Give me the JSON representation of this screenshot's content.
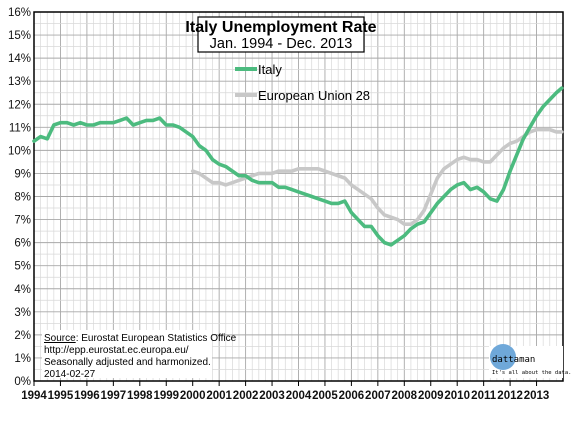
{
  "chart_data": {
    "type": "line",
    "title": "Italy Unemployment Rate",
    "subtitle": "Jan. 1994 - Dec. 2013",
    "xlabel": "",
    "ylabel": "",
    "xlim": [
      1994.0,
      2014.0
    ],
    "ylim": [
      0,
      16
    ],
    "x_ticks": [
      "1994",
      "1995",
      "1996",
      "1997",
      "1998",
      "1999",
      "2000",
      "2001",
      "2002",
      "2003",
      "2004",
      "2005",
      "2006",
      "2007",
      "2008",
      "2009",
      "2010",
      "2011",
      "2012",
      "2013"
    ],
    "y_ticks": [
      "0%",
      "1%",
      "2%",
      "3%",
      "4%",
      "5%",
      "6%",
      "7%",
      "8%",
      "9%",
      "10%",
      "11%",
      "12%",
      "13%",
      "14%",
      "15%",
      "16%"
    ],
    "grid": true,
    "legend_position": "top-center",
    "series": [
      {
        "name": "Italy",
        "color": "#4cbb7f",
        "points": [
          [
            1994.0,
            10.4
          ],
          [
            1994.25,
            10.6
          ],
          [
            1994.5,
            10.5
          ],
          [
            1994.75,
            11.1
          ],
          [
            1995.0,
            11.2
          ],
          [
            1995.25,
            11.2
          ],
          [
            1995.5,
            11.1
          ],
          [
            1995.75,
            11.2
          ],
          [
            1996.0,
            11.1
          ],
          [
            1996.25,
            11.1
          ],
          [
            1996.5,
            11.2
          ],
          [
            1996.75,
            11.2
          ],
          [
            1997.0,
            11.2
          ],
          [
            1997.25,
            11.3
          ],
          [
            1997.5,
            11.4
          ],
          [
            1997.75,
            11.1
          ],
          [
            1998.0,
            11.2
          ],
          [
            1998.25,
            11.3
          ],
          [
            1998.5,
            11.3
          ],
          [
            1998.75,
            11.4
          ],
          [
            1999.0,
            11.1
          ],
          [
            1999.25,
            11.1
          ],
          [
            1999.5,
            11.0
          ],
          [
            1999.75,
            10.8
          ],
          [
            2000.0,
            10.6
          ],
          [
            2000.25,
            10.2
          ],
          [
            2000.5,
            10.0
          ],
          [
            2000.75,
            9.6
          ],
          [
            2001.0,
            9.4
          ],
          [
            2001.25,
            9.3
          ],
          [
            2001.5,
            9.1
          ],
          [
            2001.75,
            8.9
          ],
          [
            2002.0,
            8.9
          ],
          [
            2002.25,
            8.7
          ],
          [
            2002.5,
            8.6
          ],
          [
            2002.75,
            8.6
          ],
          [
            2003.0,
            8.6
          ],
          [
            2003.25,
            8.4
          ],
          [
            2003.5,
            8.4
          ],
          [
            2003.75,
            8.3
          ],
          [
            2004.0,
            8.2
          ],
          [
            2004.25,
            8.1
          ],
          [
            2004.5,
            8.0
          ],
          [
            2004.75,
            7.9
          ],
          [
            2005.0,
            7.8
          ],
          [
            2005.25,
            7.7
          ],
          [
            2005.5,
            7.7
          ],
          [
            2005.75,
            7.8
          ],
          [
            2006.0,
            7.3
          ],
          [
            2006.25,
            7.0
          ],
          [
            2006.5,
            6.7
          ],
          [
            2006.75,
            6.7
          ],
          [
            2007.0,
            6.3
          ],
          [
            2007.25,
            6.0
          ],
          [
            2007.5,
            5.9
          ],
          [
            2007.75,
            6.1
          ],
          [
            2008.0,
            6.3
          ],
          [
            2008.25,
            6.6
          ],
          [
            2008.5,
            6.8
          ],
          [
            2008.75,
            6.9
          ],
          [
            2009.0,
            7.3
          ],
          [
            2009.25,
            7.7
          ],
          [
            2009.5,
            8.0
          ],
          [
            2009.75,
            8.3
          ],
          [
            2010.0,
            8.5
          ],
          [
            2010.25,
            8.6
          ],
          [
            2010.5,
            8.3
          ],
          [
            2010.75,
            8.4
          ],
          [
            2011.0,
            8.2
          ],
          [
            2011.25,
            7.9
          ],
          [
            2011.5,
            7.8
          ],
          [
            2011.75,
            8.3
          ],
          [
            2012.0,
            9.1
          ],
          [
            2012.25,
            9.8
          ],
          [
            2012.5,
            10.5
          ],
          [
            2012.75,
            11.0
          ],
          [
            2013.0,
            11.5
          ],
          [
            2013.25,
            11.9
          ],
          [
            2013.5,
            12.2
          ],
          [
            2013.75,
            12.5
          ],
          [
            2013.95,
            12.7
          ]
        ]
      },
      {
        "name": "European Union 28",
        "color": "#c8c8c8",
        "points": [
          [
            2000.0,
            9.1
          ],
          [
            2000.25,
            9.0
          ],
          [
            2000.5,
            8.8
          ],
          [
            2000.75,
            8.6
          ],
          [
            2001.0,
            8.6
          ],
          [
            2001.25,
            8.5
          ],
          [
            2001.5,
            8.6
          ],
          [
            2001.75,
            8.7
          ],
          [
            2002.0,
            8.8
          ],
          [
            2002.25,
            8.9
          ],
          [
            2002.5,
            9.0
          ],
          [
            2002.75,
            9.0
          ],
          [
            2003.0,
            9.0
          ],
          [
            2003.25,
            9.1
          ],
          [
            2003.5,
            9.1
          ],
          [
            2003.75,
            9.1
          ],
          [
            2004.0,
            9.2
          ],
          [
            2004.25,
            9.2
          ],
          [
            2004.5,
            9.2
          ],
          [
            2004.75,
            9.2
          ],
          [
            2005.0,
            9.1
          ],
          [
            2005.25,
            9.0
          ],
          [
            2005.5,
            8.9
          ],
          [
            2005.75,
            8.8
          ],
          [
            2006.0,
            8.5
          ],
          [
            2006.25,
            8.3
          ],
          [
            2006.5,
            8.1
          ],
          [
            2006.75,
            7.9
          ],
          [
            2007.0,
            7.5
          ],
          [
            2007.25,
            7.2
          ],
          [
            2007.5,
            7.1
          ],
          [
            2007.75,
            7.0
          ],
          [
            2008.0,
            6.8
          ],
          [
            2008.25,
            6.8
          ],
          [
            2008.5,
            7.0
          ],
          [
            2008.75,
            7.4
          ],
          [
            2009.0,
            8.1
          ],
          [
            2009.25,
            8.8
          ],
          [
            2009.5,
            9.2
          ],
          [
            2009.75,
            9.4
          ],
          [
            2010.0,
            9.6
          ],
          [
            2010.25,
            9.7
          ],
          [
            2010.5,
            9.6
          ],
          [
            2010.75,
            9.6
          ],
          [
            2011.0,
            9.5
          ],
          [
            2011.25,
            9.5
          ],
          [
            2011.5,
            9.8
          ],
          [
            2011.75,
            10.1
          ],
          [
            2012.0,
            10.3
          ],
          [
            2012.25,
            10.4
          ],
          [
            2012.5,
            10.6
          ],
          [
            2012.75,
            10.8
          ],
          [
            2013.0,
            10.9
          ],
          [
            2013.25,
            10.9
          ],
          [
            2013.5,
            10.9
          ],
          [
            2013.75,
            10.8
          ],
          [
            2013.95,
            10.8
          ]
        ]
      }
    ]
  },
  "source": {
    "line1_prefix": "Source",
    "line1_rest": ": Eurostat European Statistics Office",
    "line2": "http://epp.eurostat.ec.europa.eu/",
    "line3": "Seasonally adjusted and harmonized.",
    "line4": "2014-02-27"
  },
  "logo": {
    "name": "dattaman",
    "tagline": "It's all about the data.",
    "color": "#6fa8d9"
  }
}
